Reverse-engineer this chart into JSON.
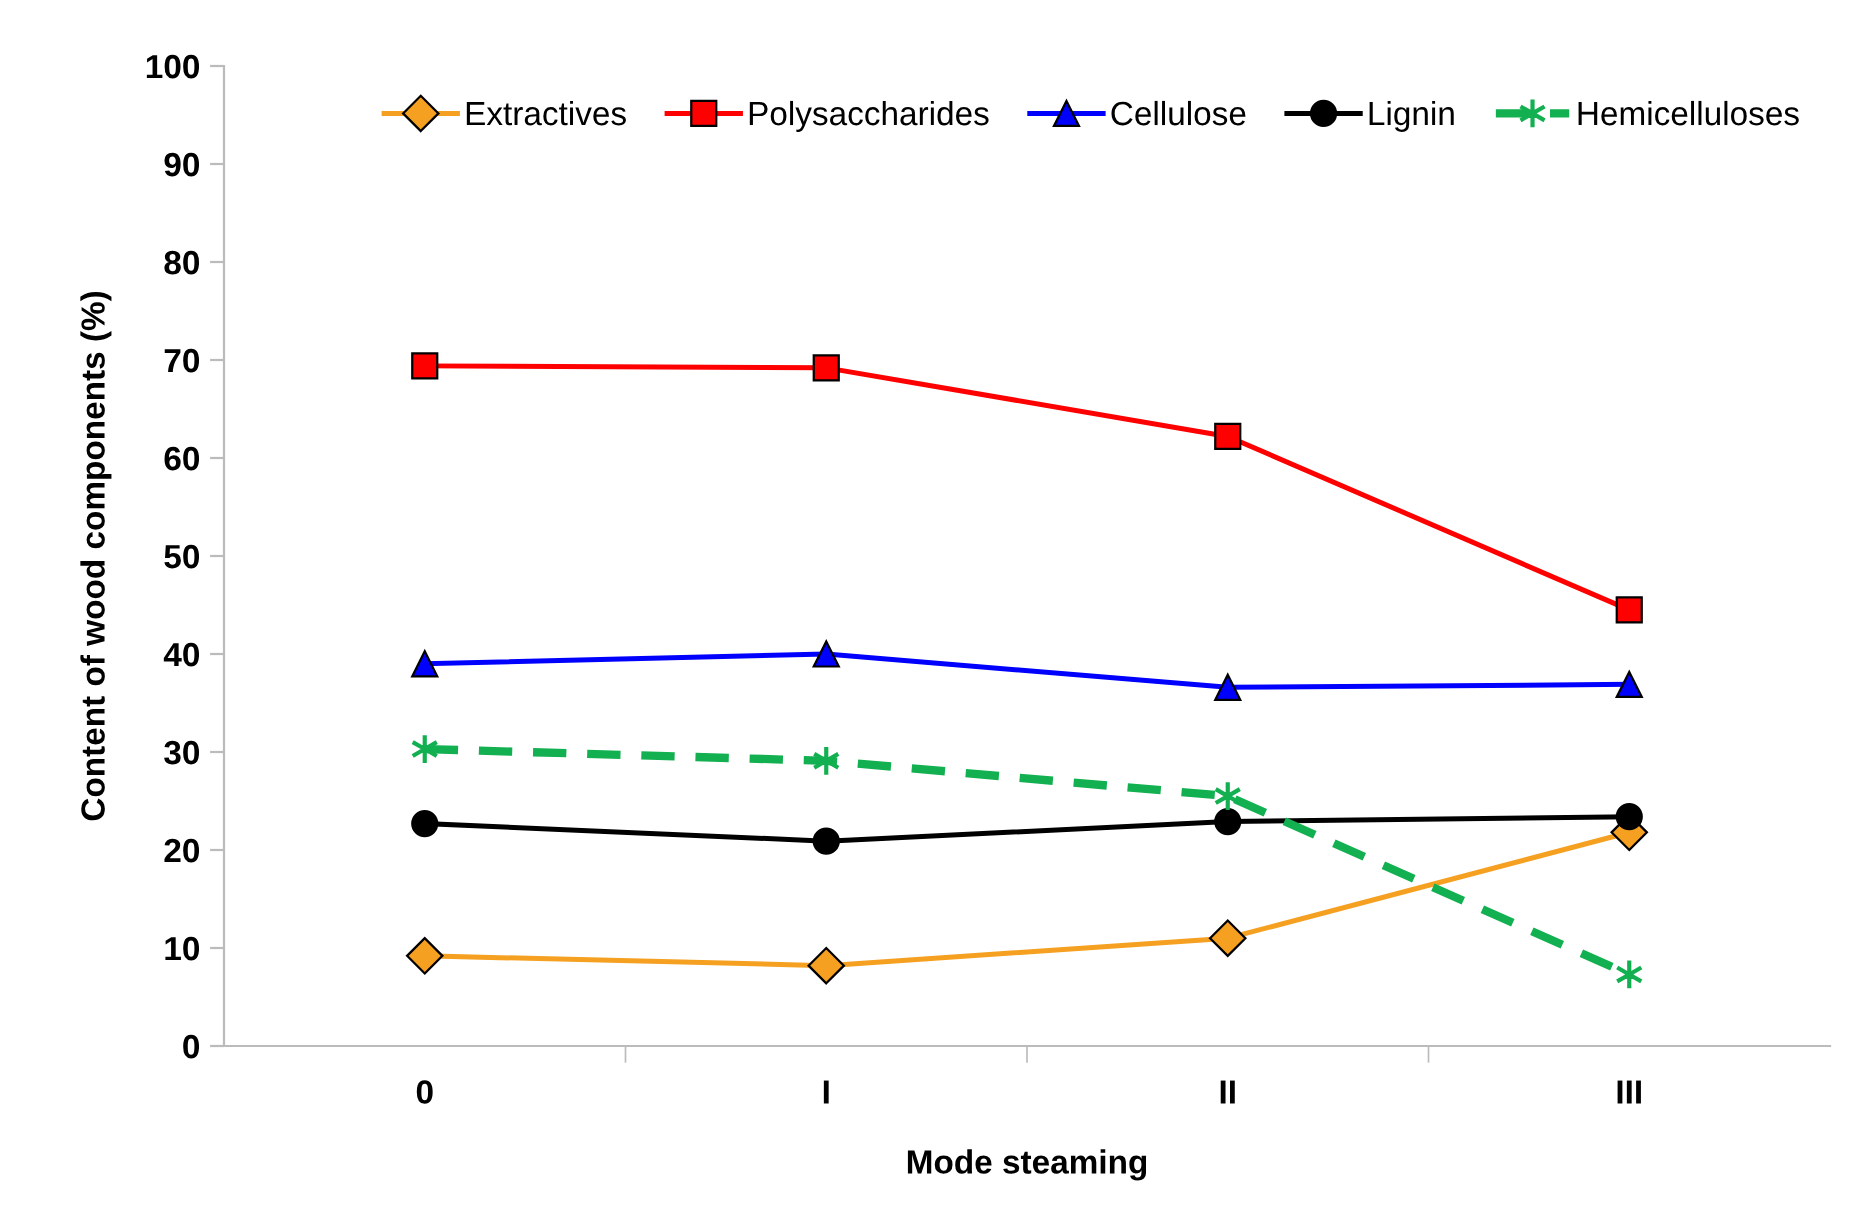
{
  "chart_data": {
    "type": "line",
    "xlabel": "Mode steaming",
    "ylabel": "Content of wood components (%)",
    "categories": [
      "0",
      "I",
      "II",
      "III"
    ],
    "series": [
      {
        "name": "Extractives",
        "color": "#f5a020",
        "marker": "diamond",
        "line_style": "solid",
        "values": [
          9.2,
          8.2,
          11.0,
          21.8
        ]
      },
      {
        "name": "Polysaccharides",
        "color": "#ff0000",
        "marker": "square",
        "line_style": "solid",
        "values": [
          69.4,
          69.2,
          62.2,
          44.5
        ]
      },
      {
        "name": "Cellulose",
        "color": "#0000ff",
        "marker": "triangle",
        "line_style": "solid",
        "values": [
          39.0,
          40.0,
          36.6,
          36.9
        ]
      },
      {
        "name": "Lignin",
        "color": "#000000",
        "marker": "circle",
        "line_style": "solid",
        "values": [
          22.7,
          20.9,
          22.9,
          23.4
        ]
      },
      {
        "name": "Hemicelluloses",
        "color": "#12b050",
        "marker": "cross",
        "line_style": "dashed",
        "values": [
          30.3,
          29.1,
          25.5,
          7.3
        ]
      }
    ],
    "ylim": [
      0,
      100
    ],
    "yticks": [
      0,
      10,
      20,
      30,
      40,
      50,
      60,
      70,
      80,
      90,
      100
    ],
    "grid": false,
    "legend": "top right"
  }
}
